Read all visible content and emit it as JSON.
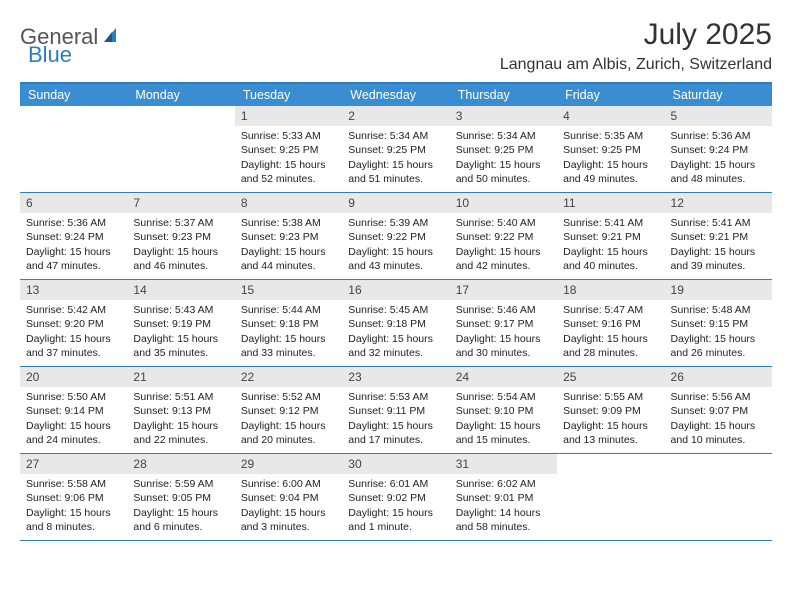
{
  "logo": {
    "text1": "General",
    "text2": "Blue"
  },
  "title": "July 2025",
  "location": "Langnau am Albis, Zurich, Switzerland",
  "colors": {
    "header_bg": "#3a8dd0",
    "border": "#2b7ec2",
    "daynum_bg": "#e8e8e8",
    "text": "#222222",
    "logo_gray": "#555555",
    "logo_blue": "#2b7ec2"
  },
  "day_names": [
    "Sunday",
    "Monday",
    "Tuesday",
    "Wednesday",
    "Thursday",
    "Friday",
    "Saturday"
  ],
  "weeks": [
    [
      null,
      null,
      {
        "n": "1",
        "sr": "5:33 AM",
        "ss": "9:25 PM",
        "dl": "15 hours and 52 minutes."
      },
      {
        "n": "2",
        "sr": "5:34 AM",
        "ss": "9:25 PM",
        "dl": "15 hours and 51 minutes."
      },
      {
        "n": "3",
        "sr": "5:34 AM",
        "ss": "9:25 PM",
        "dl": "15 hours and 50 minutes."
      },
      {
        "n": "4",
        "sr": "5:35 AM",
        "ss": "9:25 PM",
        "dl": "15 hours and 49 minutes."
      },
      {
        "n": "5",
        "sr": "5:36 AM",
        "ss": "9:24 PM",
        "dl": "15 hours and 48 minutes."
      }
    ],
    [
      {
        "n": "6",
        "sr": "5:36 AM",
        "ss": "9:24 PM",
        "dl": "15 hours and 47 minutes."
      },
      {
        "n": "7",
        "sr": "5:37 AM",
        "ss": "9:23 PM",
        "dl": "15 hours and 46 minutes."
      },
      {
        "n": "8",
        "sr": "5:38 AM",
        "ss": "9:23 PM",
        "dl": "15 hours and 44 minutes."
      },
      {
        "n": "9",
        "sr": "5:39 AM",
        "ss": "9:22 PM",
        "dl": "15 hours and 43 minutes."
      },
      {
        "n": "10",
        "sr": "5:40 AM",
        "ss": "9:22 PM",
        "dl": "15 hours and 42 minutes."
      },
      {
        "n": "11",
        "sr": "5:41 AM",
        "ss": "9:21 PM",
        "dl": "15 hours and 40 minutes."
      },
      {
        "n": "12",
        "sr": "5:41 AM",
        "ss": "9:21 PM",
        "dl": "15 hours and 39 minutes."
      }
    ],
    [
      {
        "n": "13",
        "sr": "5:42 AM",
        "ss": "9:20 PM",
        "dl": "15 hours and 37 minutes."
      },
      {
        "n": "14",
        "sr": "5:43 AM",
        "ss": "9:19 PM",
        "dl": "15 hours and 35 minutes."
      },
      {
        "n": "15",
        "sr": "5:44 AM",
        "ss": "9:18 PM",
        "dl": "15 hours and 33 minutes."
      },
      {
        "n": "16",
        "sr": "5:45 AM",
        "ss": "9:18 PM",
        "dl": "15 hours and 32 minutes."
      },
      {
        "n": "17",
        "sr": "5:46 AM",
        "ss": "9:17 PM",
        "dl": "15 hours and 30 minutes."
      },
      {
        "n": "18",
        "sr": "5:47 AM",
        "ss": "9:16 PM",
        "dl": "15 hours and 28 minutes."
      },
      {
        "n": "19",
        "sr": "5:48 AM",
        "ss": "9:15 PM",
        "dl": "15 hours and 26 minutes."
      }
    ],
    [
      {
        "n": "20",
        "sr": "5:50 AM",
        "ss": "9:14 PM",
        "dl": "15 hours and 24 minutes."
      },
      {
        "n": "21",
        "sr": "5:51 AM",
        "ss": "9:13 PM",
        "dl": "15 hours and 22 minutes."
      },
      {
        "n": "22",
        "sr": "5:52 AM",
        "ss": "9:12 PM",
        "dl": "15 hours and 20 minutes."
      },
      {
        "n": "23",
        "sr": "5:53 AM",
        "ss": "9:11 PM",
        "dl": "15 hours and 17 minutes."
      },
      {
        "n": "24",
        "sr": "5:54 AM",
        "ss": "9:10 PM",
        "dl": "15 hours and 15 minutes."
      },
      {
        "n": "25",
        "sr": "5:55 AM",
        "ss": "9:09 PM",
        "dl": "15 hours and 13 minutes."
      },
      {
        "n": "26",
        "sr": "5:56 AM",
        "ss": "9:07 PM",
        "dl": "15 hours and 10 minutes."
      }
    ],
    [
      {
        "n": "27",
        "sr": "5:58 AM",
        "ss": "9:06 PM",
        "dl": "15 hours and 8 minutes."
      },
      {
        "n": "28",
        "sr": "5:59 AM",
        "ss": "9:05 PM",
        "dl": "15 hours and 6 minutes."
      },
      {
        "n": "29",
        "sr": "6:00 AM",
        "ss": "9:04 PM",
        "dl": "15 hours and 3 minutes."
      },
      {
        "n": "30",
        "sr": "6:01 AM",
        "ss": "9:02 PM",
        "dl": "15 hours and 1 minute."
      },
      {
        "n": "31",
        "sr": "6:02 AM",
        "ss": "9:01 PM",
        "dl": "14 hours and 58 minutes."
      },
      null,
      null
    ]
  ],
  "labels": {
    "sunrise": "Sunrise:",
    "sunset": "Sunset:",
    "daylight": "Daylight:"
  }
}
